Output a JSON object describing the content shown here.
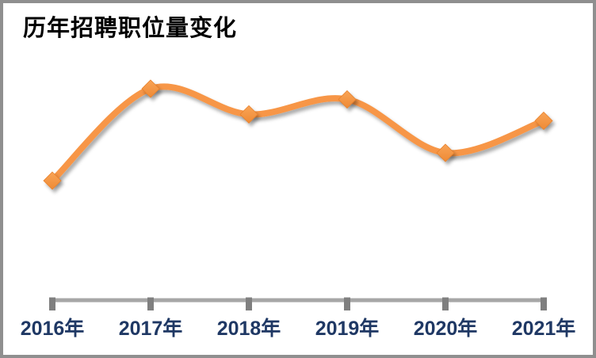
{
  "chart_data": {
    "type": "line",
    "title": "历年招聘职位量变化",
    "categories": [
      "2016年",
      "2017年",
      "2018年",
      "2019年",
      "2020年",
      "2021年"
    ],
    "values": [
      57,
      100,
      88,
      95,
      70,
      85
    ],
    "values_note": "relative scale, 2017 peak = 100; y-axis not shown in chart",
    "xlabel": "",
    "ylabel": "",
    "ylim": [
      0,
      110
    ],
    "grid": false,
    "legend": "none",
    "smooth_line": true,
    "marker_shape": "diamond",
    "colors": {
      "line": "#F79646",
      "marker": "#F79646",
      "marker_edge": "#E8812C",
      "axis_line": "#A6A6A6",
      "axis_tick": "#7F7F7F",
      "x_label": "#1F3864",
      "title": "#000000",
      "background": "#FFFFFF",
      "frame_border": "#8F8F8F"
    }
  }
}
